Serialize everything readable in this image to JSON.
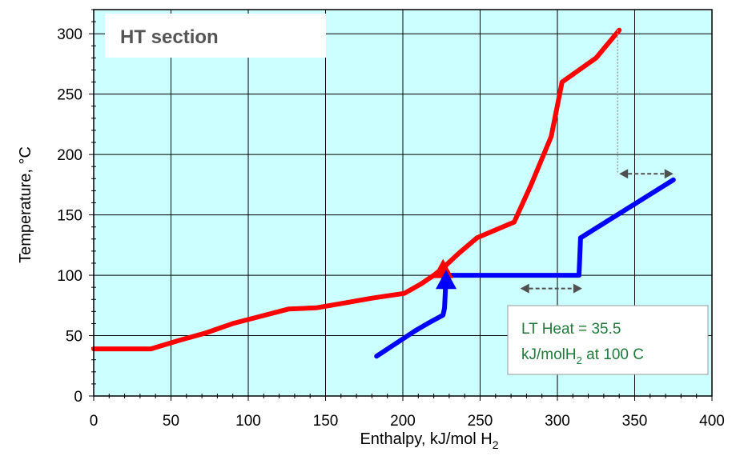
{
  "chart_data": {
    "type": "line",
    "title": "",
    "xlabel": {
      "main": "Enthalpy, kJ/mol H",
      "sub": "2"
    },
    "ylabel": "Temperature, °C",
    "xlim": [
      0,
      400
    ],
    "ylim": [
      0,
      320
    ],
    "x_ticks": [
      0,
      50,
      100,
      150,
      200,
      250,
      300,
      350,
      400
    ],
    "y_ticks": [
      0,
      50,
      100,
      150,
      200,
      250,
      300
    ],
    "x_tick_labels": [
      "0",
      "50",
      "100",
      "150",
      "200",
      "250",
      "300",
      "350",
      "400"
    ],
    "y_tick_labels": [
      "0",
      "50",
      "100",
      "150",
      "200",
      "250",
      "300"
    ],
    "grid": true,
    "plot_background": "#ccffff",
    "series": [
      {
        "color": "#ff0000",
        "points": [
          [
            0,
            39
          ],
          [
            37,
            39
          ],
          [
            55,
            46
          ],
          [
            72,
            52
          ],
          [
            90,
            60
          ],
          [
            108,
            66
          ],
          [
            126,
            72
          ],
          [
            144,
            73
          ],
          [
            162,
            77
          ],
          [
            180,
            81
          ],
          [
            201,
            85
          ],
          [
            212,
            93
          ],
          [
            220,
            100
          ],
          [
            226,
            106
          ],
          [
            236,
            118
          ],
          [
            248,
            131
          ],
          [
            272,
            144
          ],
          [
            283,
            175
          ],
          [
            296,
            215
          ],
          [
            303,
            260
          ],
          [
            325,
            280
          ],
          [
            340,
            303
          ]
        ]
      },
      {
        "color": "#0000ff",
        "points": [
          [
            183,
            33
          ],
          [
            208,
            54
          ],
          [
            216,
            60
          ],
          [
            226,
            67
          ],
          [
            227,
            73
          ],
          [
            228,
            100
          ],
          [
            314,
            100
          ],
          [
            315,
            131
          ],
          [
            375,
            179
          ]
        ]
      }
    ],
    "markers": [
      {
        "shape": "triangle-up",
        "color": "#ff0000",
        "x": 226,
        "y": 104
      },
      {
        "shape": "triangle-up",
        "color": "#0000ff",
        "x": 228,
        "y": 95
      }
    ],
    "double_arrows": [
      {
        "color": "#505050",
        "x1": 340,
        "x2": 375,
        "y": 184
      },
      {
        "color": "#505050",
        "x1": 276,
        "x2": 316,
        "y": 89
      }
    ],
    "dotted_lines": [
      {
        "color": "#a0a0a0",
        "x": 339,
        "y1": 303,
        "y2": 184
      }
    ],
    "annotations": {
      "ht_label": "HT section",
      "lt_line1": "LT Heat = 35.5",
      "lt_line2_a": "kJ/molH",
      "lt_line2_sub": "2",
      "lt_line2_b": " at 100 C"
    }
  }
}
